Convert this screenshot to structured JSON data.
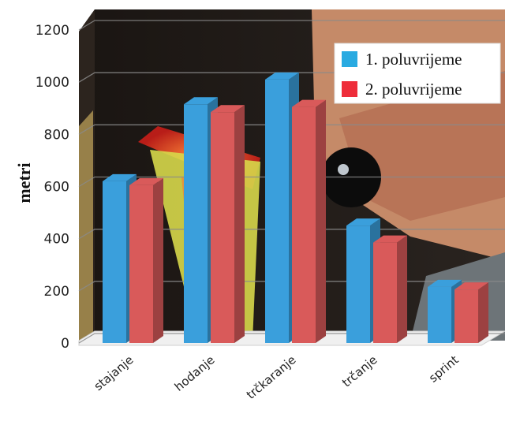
{
  "chart_data": {
    "type": "bar",
    "variant": "3d-clustered",
    "categories": [
      "stajanje",
      "hodanje",
      "trčkaranje",
      "trčanje",
      "sprint"
    ],
    "series": [
      {
        "name": "1. poluvrijeme",
        "color": "#3a9fdc",
        "values": [
          620,
          915,
          1010,
          450,
          215
        ]
      },
      {
        "name": "2. poluvrijeme",
        "color": "#d95a5a",
        "values": [
          605,
          885,
          905,
          385,
          205
        ]
      }
    ],
    "ylabel": "metri",
    "ylim": [
      0,
      1200
    ],
    "yticks": [
      0,
      200,
      400,
      600,
      800,
      1000,
      1200
    ],
    "grid": true,
    "legend": "top-right",
    "legend_colors": [
      "#29aae1",
      "#ee2d3a"
    ],
    "background": "photo"
  }
}
